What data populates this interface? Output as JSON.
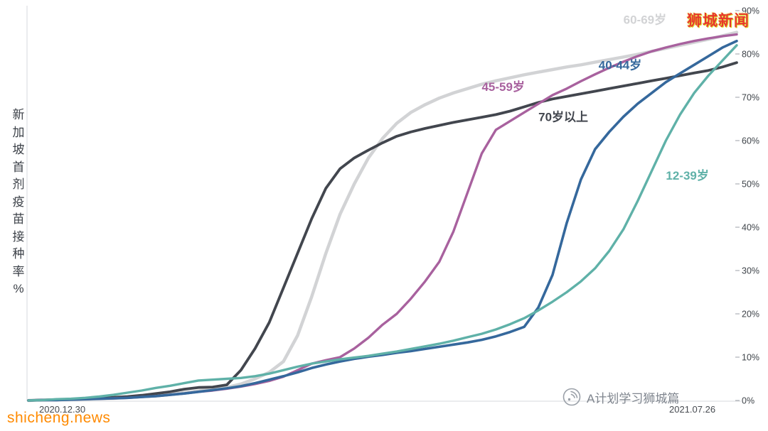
{
  "watermark": {
    "brand": "狮城新闻"
  },
  "footer": {
    "site": "shicheng.news",
    "credit": "A计划学习狮城篇"
  },
  "chart_data": {
    "type": "line",
    "title": "",
    "ylabel": "新加坡首剂疫苗接种率%",
    "x_axis_labels": [
      "2020.12.30",
      "2021.07.26"
    ],
    "x_unit": "percent of timeline from 2020.12.30 to 2021.07.26",
    "ylim": [
      0,
      90
    ],
    "ytick_step": 10,
    "yticks": [
      "90%",
      "80%",
      "70%",
      "60%",
      "50%",
      "40%",
      "30%",
      "20%",
      "10%",
      "0%"
    ],
    "grid": false,
    "legend_position": "inline-labels",
    "x": [
      0,
      2,
      4,
      6,
      8,
      10,
      12,
      14,
      16,
      18,
      20,
      22,
      24,
      26,
      28,
      30,
      32,
      34,
      36,
      38,
      40,
      42,
      44,
      46,
      48,
      50,
      52,
      54,
      56,
      58,
      60,
      62,
      64,
      66,
      68,
      70,
      72,
      74,
      76,
      78,
      80,
      82,
      84,
      86,
      88,
      90,
      92,
      94,
      96,
      98,
      100
    ],
    "series": [
      {
        "id": "60-69",
        "name": "60-69岁",
        "color": "#d2d3d5",
        "width": 4.5,
        "label_pos": {
          "t": 84,
          "v": 87
        },
        "values": [
          0,
          0.1,
          0.1,
          0.2,
          0.3,
          0.4,
          0.5,
          0.7,
          0.9,
          1.2,
          1.5,
          1.8,
          2.2,
          2.6,
          3,
          3.8,
          5,
          6.5,
          9,
          15,
          24,
          34,
          43,
          50,
          56,
          60.5,
          64,
          66.5,
          68.3,
          69.8,
          71,
          72,
          73,
          73.8,
          74.5,
          75.2,
          75.8,
          76.4,
          77,
          77.5,
          78.1,
          78.7,
          79.3,
          79.9,
          80.6,
          81.3,
          82,
          82.7,
          83.4,
          84.2,
          85
        ]
      },
      {
        "id": "70plus",
        "name": "70岁以上",
        "color": "#42464e",
        "width": 3.8,
        "label_pos": {
          "t": 72,
          "v": 64.5
        },
        "values": [
          0,
          0.1,
          0.2,
          0.3,
          0.4,
          0.5,
          0.7,
          0.9,
          1.2,
          1.6,
          2,
          2.6,
          3,
          3.1,
          3.6,
          7,
          12,
          18,
          26,
          34,
          42,
          49,
          53.5,
          56,
          57.8,
          59.5,
          61,
          62,
          62.8,
          63.5,
          64.2,
          64.8,
          65.4,
          66,
          66.8,
          67.8,
          68.8,
          69.6,
          70.2,
          70.8,
          71.4,
          72,
          72.6,
          73.2,
          73.8,
          74.4,
          75,
          75.6,
          76.2,
          77,
          78
        ]
      },
      {
        "id": "45-59",
        "name": "45-59岁",
        "color": "#a8619e",
        "width": 3.4,
        "label_pos": {
          "t": 64,
          "v": 71.5
        },
        "values": [
          0,
          0.1,
          0.1,
          0.2,
          0.3,
          0.4,
          0.5,
          0.6,
          0.8,
          1,
          1.3,
          1.6,
          2,
          2.3,
          2.7,
          3.2,
          3.8,
          4.5,
          5.5,
          7,
          8.5,
          9.3,
          10,
          12,
          14.5,
          17.5,
          20,
          23.5,
          27.5,
          32,
          39,
          48,
          57,
          62.5,
          64.5,
          66.5,
          68.5,
          70.5,
          72,
          73.7,
          75.3,
          76.8,
          78.2,
          79.5,
          80.6,
          81.5,
          82.3,
          83,
          83.6,
          84.1,
          84.5
        ]
      },
      {
        "id": "40-44",
        "name": "40-44岁",
        "color": "#35689c",
        "width": 3.6,
        "label_pos": {
          "t": 80.5,
          "v": 76.5
        },
        "values": [
          0,
          0.1,
          0.1,
          0.2,
          0.3,
          0.4,
          0.5,
          0.6,
          0.8,
          1,
          1.3,
          1.6,
          2,
          2.4,
          2.8,
          3.3,
          4,
          4.8,
          5.6,
          6.5,
          7.5,
          8.3,
          9,
          9.6,
          10.1,
          10.5,
          11,
          11.4,
          11.9,
          12.4,
          12.9,
          13.4,
          14,
          14.8,
          15.8,
          17,
          21.5,
          29,
          41,
          51,
          58,
          62,
          65.5,
          68.5,
          71,
          73.5,
          75.5,
          77.5,
          79.5,
          81.5,
          83
        ]
      },
      {
        "id": "12-39",
        "name": "12-39岁",
        "color": "#5fb1a8",
        "width": 3.4,
        "label_pos": {
          "t": 90,
          "v": 51
        },
        "values": [
          0,
          0.1,
          0.3,
          0.4,
          0.6,
          0.9,
          1.3,
          1.8,
          2.3,
          2.9,
          3.4,
          4,
          4.6,
          4.8,
          5,
          5.2,
          5.6,
          6.2,
          7,
          7.8,
          8.5,
          9,
          9.5,
          9.9,
          10.3,
          10.8,
          11.3,
          11.9,
          12.5,
          13.1,
          13.8,
          14.6,
          15.4,
          16.4,
          17.6,
          19,
          20.8,
          22.8,
          25,
          27.5,
          30.5,
          34.5,
          39.5,
          46,
          53,
          60,
          66,
          71,
          75,
          78.5,
          82
        ]
      }
    ],
    "axis_colors": {
      "axis_line": "#d7d9dc",
      "tick": "#9da2a9",
      "tick_label": "#3f444a"
    }
  }
}
